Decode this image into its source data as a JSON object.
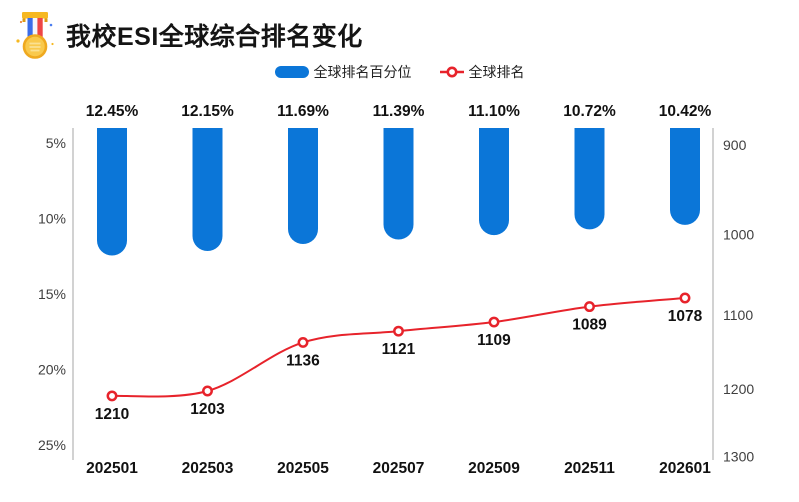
{
  "header": {
    "title": "我校ESI全球综合排名变化",
    "icon": "medal-icon"
  },
  "legend": [
    {
      "label": "全球排名百分位",
      "marker": "bar-swatch",
      "color": "#0b76d8"
    },
    {
      "label": "全球排名",
      "marker": "line-circle-swatch",
      "color": "#e7232b"
    }
  ],
  "chart_data": {
    "type": "bar",
    "title": "我校ESI全球综合排名变化",
    "categories": [
      "202501",
      "202503",
      "202505",
      "202507",
      "202509",
      "202511",
      "202601"
    ],
    "series": [
      {
        "name": "全球排名百分位",
        "type": "bar",
        "axis": "left",
        "values": [
          12.45,
          12.15,
          11.69,
          11.39,
          11.1,
          10.72,
          10.42
        ],
        "labels": [
          "12.45%",
          "12.15%",
          "11.69%",
          "11.39%",
          "11.10%",
          "10.72%",
          "10.42%"
        ],
        "color": "#0b76d8"
      },
      {
        "name": "全球排名",
        "type": "line",
        "axis": "right",
        "values": [
          1210,
          1203,
          1136,
          1121,
          1109,
          1089,
          1078
        ],
        "labels": [
          "1210",
          "1203",
          "1136",
          "1121",
          "1109",
          "1089",
          "1078"
        ],
        "color": "#e7232b"
      }
    ],
    "left_axis": {
      "inverted": true,
      "tick_labels": [
        "5%",
        "10%",
        "15%",
        "20%",
        "25%"
      ],
      "tick_values": [
        5,
        10,
        15,
        20,
        25
      ]
    },
    "right_axis": {
      "inverted": true,
      "scale": "log",
      "tick_labels": [
        "900",
        "1000",
        "1100",
        "1200",
        "1300"
      ],
      "tick_values": [
        900,
        1000,
        1100,
        1200,
        1300
      ]
    },
    "grid": false,
    "legend_position": "top-center"
  },
  "colors": {
    "bar": "#0b76d8",
    "line": "#e7232b",
    "axis_line": "#b3b3b3",
    "tick_text": "#3f3f3f",
    "label_text": "#111111"
  }
}
